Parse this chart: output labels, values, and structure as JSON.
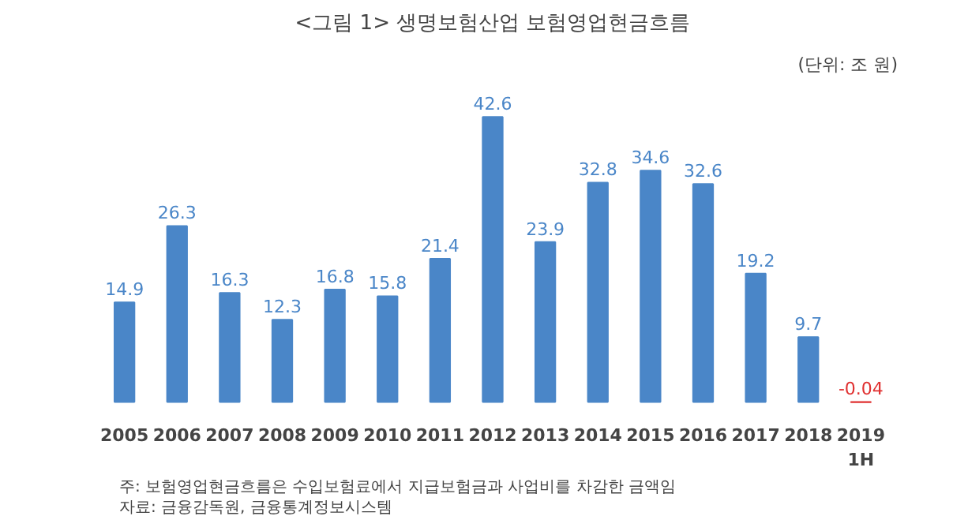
{
  "chart_data": {
    "type": "bar",
    "title": "<그림 1> 생명보험산업 보험영업현금흐름",
    "subtitle": "(단위: 조 원)",
    "categories": [
      "2005",
      "2006",
      "2007",
      "2008",
      "2009",
      "2010",
      "2011",
      "2012",
      "2013",
      "2014",
      "2015",
      "2016",
      "2017",
      "2018",
      "2019\n1H"
    ],
    "values": [
      14.9,
      26.3,
      16.3,
      12.3,
      16.8,
      15.8,
      21.4,
      42.6,
      23.9,
      32.8,
      34.6,
      32.6,
      19.2,
      9.7,
      -0.04
    ],
    "colors": [
      "#4a86c8",
      "#4a86c8",
      "#4a86c8",
      "#4a86c8",
      "#4a86c8",
      "#4a86c8",
      "#4a86c8",
      "#4a86c8",
      "#4a86c8",
      "#4a86c8",
      "#4a86c8",
      "#4a86c8",
      "#4a86c8",
      "#4a86c8",
      "#e03030"
    ],
    "data_labels": true,
    "grid": false,
    "annotations": [
      "주: 보험영업현금흐름은 수입보험료에서 지급보험금과 사업비를 차감한 금액임",
      "자료: 금융감독원, 금융통계정보시스템"
    ]
  }
}
